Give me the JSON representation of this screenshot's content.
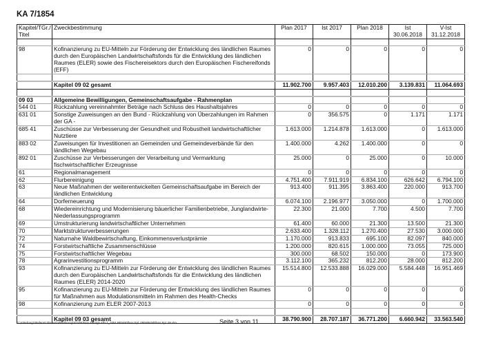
{
  "title": "KA 7/1854",
  "headers": {
    "code": "Kapitel/TGr./ Titel",
    "purpose": "Zweckbestimmung",
    "plan2017": "Plan 2017",
    "ist2017": "Ist 2017",
    "plan2018": "Plan 2018",
    "ist_line1": "Ist",
    "ist_line2": "30.06.2018",
    "vist_line1": "V-Ist",
    "vist_line2": "31.12.2018"
  },
  "rows": [
    {
      "type": "empty"
    },
    {
      "code": "98",
      "text": "Kofinanzierung zu EU-Mitteln zur Förderung der Entwicklung des ländlichen Raumes durch den Europäischen Landwirtschaftsfonds für die Entwicklung des ländlichen Raumes (ELER) sowie des Fischereisektors durch den Europäischen Fischereifonds (EFF)",
      "values": [
        "0",
        "0",
        "0",
        "0",
        "0"
      ]
    },
    {
      "type": "spacer"
    },
    {
      "type": "bold",
      "code": "",
      "text": "Kapitel 09 02 gesamt",
      "values": [
        "11.902.700",
        "9.957.403",
        "12.010.200",
        "3.139.831",
        "11.064.693"
      ]
    },
    {
      "type": "spacer"
    },
    {
      "type": "heading",
      "code": "09 03",
      "text": "Allgemeine Bewilligungen, Gemeinschaftsaufgabe - Rahmenplan",
      "values": [
        "",
        "",
        "",
        "",
        ""
      ]
    },
    {
      "code": "544 01",
      "text": "Rückzahlung vereinnahmter Beträge nach Schluss des Haushaltsjahres",
      "values": [
        "0",
        "0",
        "0",
        "0",
        "0"
      ]
    },
    {
      "code": "631 01",
      "text": "Sonstige Zuweisungen an den Bund - Rückzahlung von Überzahlungen im Rahmen der GA -",
      "values": [
        "0",
        "356.575",
        "0",
        "1.171",
        "1.171"
      ]
    },
    {
      "code": "685 41",
      "text": "Zuschüsse zur Verbesserung der Gesundheit und Robustheit landwirtschaftlicher Nutztiere",
      "values": [
        "1.613.000",
        "1.214.878",
        "1.613.000",
        "0",
        "1.613.000"
      ]
    },
    {
      "code": "883 02",
      "text": "Zuweisungen für Investitionen an Gemeinden und Gemeindeverbände für den ländlichen Wegebau",
      "values": [
        "1.400.000",
        "4.262",
        "1.400.000",
        "0",
        "0"
      ]
    },
    {
      "code": "892 01",
      "text": "Zuschüsse zur Verbesserungen der Verarbeitung und Vermarktung fischwirtschaftlicher Erzeugnisse",
      "values": [
        "25.000",
        "0",
        "25.000",
        "0",
        "10.000"
      ]
    },
    {
      "code": "61",
      "text": "Regionalmanagement",
      "values": [
        "0",
        "0",
        "0",
        "0",
        "0"
      ]
    },
    {
      "code": "62",
      "text": "Flurbereinigung",
      "values": [
        "4.751.400",
        "7.911.919",
        "6.834.100",
        "626.642",
        "6.794.100"
      ]
    },
    {
      "code": "63",
      "text": "Neue Maßnahmen der weiterentwickelten Gemeinschaftsaufgabe im Bereich der ländlichen Entwicklung",
      "values": [
        "913.400",
        "911.395",
        "3.863.400",
        "220.000",
        "913.700"
      ]
    },
    {
      "code": "64",
      "text": "Dorferneuerung",
      "values": [
        "6.074.100",
        "2.196.977",
        "3.050.000",
        "0",
        "1.700.000"
      ]
    },
    {
      "code": "68",
      "text": "Wiedereinrichtung und Modernisierung bäuerlicher Familienbetriebe, Junglandwirte-Niederlassungsprogramm",
      "values": [
        "22.300",
        "21.000",
        "7.700",
        "4.500",
        "7.700"
      ]
    },
    {
      "code": "69",
      "text": "Umstrukturierung landwirtschaftlicher Unternehmen",
      "values": [
        "61.400",
        "60.000",
        "21.300",
        "13.500",
        "21.300"
      ]
    },
    {
      "code": "70",
      "text": "Marktstrukturverbesserungen",
      "values": [
        "2.633.400",
        "1.328.112",
        "1.270.400",
        "27.530",
        "3.000.000"
      ]
    },
    {
      "code": "72",
      "text": "Naturnahe Waldbewirtschaftung, Einkommensverlustprämie",
      "values": [
        "1.170.000",
        "913.833",
        "695.100",
        "82.097",
        "840.000"
      ]
    },
    {
      "code": "74",
      "text": "Forstwirtschaftliche Zusammenschlüsse",
      "values": [
        "1.200.000",
        "820.615",
        "1.000.000",
        "73.055",
        "725.000"
      ]
    },
    {
      "code": "75",
      "text": "Forstwirtschaftlicher Wegebau",
      "values": [
        "300.000",
        "68.502",
        "150.000",
        "0",
        "173.900"
      ]
    },
    {
      "code": "78",
      "text": "Agrarinvestitionsprogramm",
      "values": [
        "3.112.100",
        "365.232",
        "812.200",
        "28.000",
        "812.200"
      ]
    },
    {
      "code": "93",
      "text": "Kofinanzierung zu EU-Mitteln zur Förderung der Entwicklung des ländlichen Raumes durch den Europäischen Landwirtschaftsfonds für die Entwicklung des ländlichen Raumes (ELER) 2014-2020",
      "values": [
        "15.514.800",
        "12.533.888",
        "16.029.000",
        "5.584.448",
        "16.951.469"
      ]
    },
    {
      "code": "95",
      "text": "Kofinanzierung zu EU-Mitteln zur Förderung der Entwicklung des ländlichen Raumes für Maßnahmen aus Modulationsmitteln im Rahmen des Health-Checks",
      "values": [
        "0",
        "0",
        "0",
        "0",
        "0"
      ]
    },
    {
      "code": "98",
      "text": "Kofinanzierung zum ELER 2007-2013",
      "values": [
        "0",
        "0",
        "0",
        "0",
        "0"
      ]
    },
    {
      "type": "spacer"
    },
    {
      "type": "bold",
      "code": "",
      "text": "Kapitel 09 03 gesamt",
      "values": [
        "38.790.900",
        "28.707.187",
        "36.771.200",
        "6.660.942",
        "33.563.540"
      ]
    }
  ],
  "footer": {
    "path": "G:\\Abteilung1\\Referat13\\Haushaltsführung\\2018\\Kleine Anfrage AfD 7_1854 Mittelabfluss Epl. 09\\Mittelabfluss Epl. 09.xlsx",
    "page": "Seite 3 von 11"
  }
}
